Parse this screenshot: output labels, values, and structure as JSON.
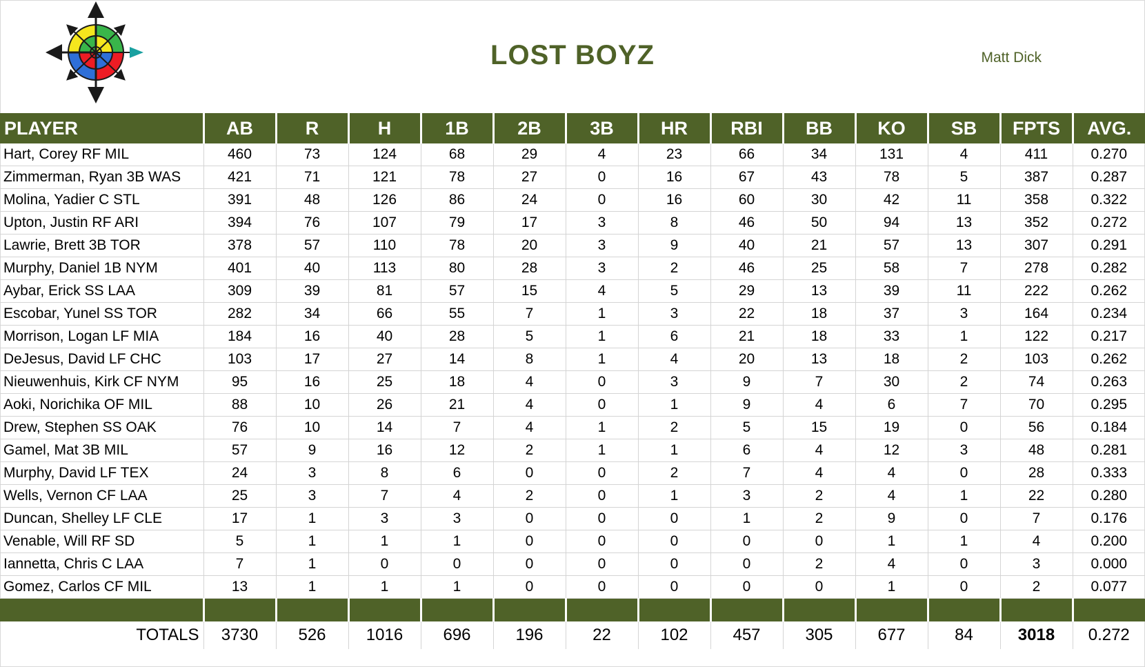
{
  "header": {
    "team_name": "LOST BOYZ",
    "owner": "Matt Dick",
    "logo_icon": "compass-rose-icon"
  },
  "colors": {
    "accent": "#4f6228",
    "gridline": "#d4d4d4"
  },
  "table": {
    "columns": [
      "PLAYER",
      "AB",
      "R",
      "H",
      "1B",
      "2B",
      "3B",
      "HR",
      "RBI",
      "BB",
      "KO",
      "SB",
      "FPTS",
      "AVG."
    ],
    "rows": [
      [
        "Hart, Corey RF MIL",
        "460",
        "73",
        "124",
        "68",
        "29",
        "4",
        "23",
        "66",
        "34",
        "131",
        "4",
        "411",
        "0.270"
      ],
      [
        "Zimmerman, Ryan 3B WAS",
        "421",
        "71",
        "121",
        "78",
        "27",
        "0",
        "16",
        "67",
        "43",
        "78",
        "5",
        "387",
        "0.287"
      ],
      [
        "Molina, Yadier C STL",
        "391",
        "48",
        "126",
        "86",
        "24",
        "0",
        "16",
        "60",
        "30",
        "42",
        "11",
        "358",
        "0.322"
      ],
      [
        "Upton, Justin RF ARI",
        "394",
        "76",
        "107",
        "79",
        "17",
        "3",
        "8",
        "46",
        "50",
        "94",
        "13",
        "352",
        "0.272"
      ],
      [
        "Lawrie, Brett 3B TOR",
        "378",
        "57",
        "110",
        "78",
        "20",
        "3",
        "9",
        "40",
        "21",
        "57",
        "13",
        "307",
        "0.291"
      ],
      [
        "Murphy, Daniel 1B NYM",
        "401",
        "40",
        "113",
        "80",
        "28",
        "3",
        "2",
        "46",
        "25",
        "58",
        "7",
        "278",
        "0.282"
      ],
      [
        "Aybar, Erick SS LAA",
        "309",
        "39",
        "81",
        "57",
        "15",
        "4",
        "5",
        "29",
        "13",
        "39",
        "11",
        "222",
        "0.262"
      ],
      [
        "Escobar, Yunel SS TOR",
        "282",
        "34",
        "66",
        "55",
        "7",
        "1",
        "3",
        "22",
        "18",
        "37",
        "3",
        "164",
        "0.234"
      ],
      [
        "Morrison, Logan LF MIA",
        "184",
        "16",
        "40",
        "28",
        "5",
        "1",
        "6",
        "21",
        "18",
        "33",
        "1",
        "122",
        "0.217"
      ],
      [
        "DeJesus, David LF CHC",
        "103",
        "17",
        "27",
        "14",
        "8",
        "1",
        "4",
        "20",
        "13",
        "18",
        "2",
        "103",
        "0.262"
      ],
      [
        "Nieuwenhuis, Kirk CF NYM",
        "95",
        "16",
        "25",
        "18",
        "4",
        "0",
        "3",
        "9",
        "7",
        "30",
        "2",
        "74",
        "0.263"
      ],
      [
        "Aoki, Norichika OF MIL",
        "88",
        "10",
        "26",
        "21",
        "4",
        "0",
        "1",
        "9",
        "4",
        "6",
        "7",
        "70",
        "0.295"
      ],
      [
        "Drew, Stephen SS OAK",
        "76",
        "10",
        "14",
        "7",
        "4",
        "1",
        "2",
        "5",
        "15",
        "19",
        "0",
        "56",
        "0.184"
      ],
      [
        "Gamel, Mat 3B MIL",
        "57",
        "9",
        "16",
        "12",
        "2",
        "1",
        "1",
        "6",
        "4",
        "12",
        "3",
        "48",
        "0.281"
      ],
      [
        "Murphy, David LF TEX",
        "24",
        "3",
        "8",
        "6",
        "0",
        "0",
        "2",
        "7",
        "4",
        "4",
        "0",
        "28",
        "0.333"
      ],
      [
        "Wells, Vernon CF LAA",
        "25",
        "3",
        "7",
        "4",
        "2",
        "0",
        "1",
        "3",
        "2",
        "4",
        "1",
        "22",
        "0.280"
      ],
      [
        "Duncan, Shelley LF CLE",
        "17",
        "1",
        "3",
        "3",
        "0",
        "0",
        "0",
        "1",
        "2",
        "9",
        "0",
        "7",
        "0.176"
      ],
      [
        "Venable, Will RF SD",
        "5",
        "1",
        "1",
        "1",
        "0",
        "0",
        "0",
        "0",
        "0",
        "1",
        "1",
        "4",
        "0.200"
      ],
      [
        "Iannetta, Chris C LAA",
        "7",
        "1",
        "0",
        "0",
        "0",
        "0",
        "0",
        "0",
        "2",
        "4",
        "0",
        "3",
        "0.000"
      ],
      [
        "Gomez, Carlos CF MIL",
        "13",
        "1",
        "1",
        "1",
        "0",
        "0",
        "0",
        "0",
        "0",
        "1",
        "0",
        "2",
        "0.077"
      ]
    ],
    "totals": [
      "TOTALS",
      "3730",
      "526",
      "1016",
      "696",
      "196",
      "22",
      "102",
      "457",
      "305",
      "677",
      "84",
      "3018",
      "0.272"
    ]
  }
}
